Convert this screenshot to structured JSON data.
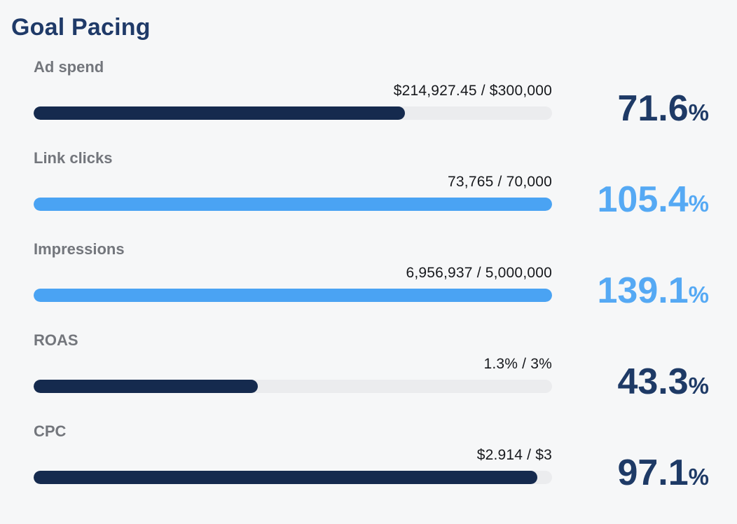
{
  "title": "Goal Pacing",
  "percent_suffix": "%",
  "colors": {
    "navy_bar": "#152a4e",
    "navy_text": "#1e3a66",
    "blue_bar": "#4aa3f3",
    "blue_text": "#55a9f4",
    "track": "#ebecee",
    "label_gray": "#73767c",
    "value_dark": "#17191d",
    "background": "#f6f7f8"
  },
  "chart_data": {
    "type": "bar",
    "title": "Goal Pacing",
    "orientation": "horizontal",
    "bar_scale": "0-100% of goal, capped at 100",
    "metrics": [
      {
        "label": "Ad spend",
        "value_text": "$214,927.45 / $300,000",
        "current": 214927.45,
        "goal": 300000,
        "percent": 71.6,
        "percent_display": "71.6",
        "theme": "navy"
      },
      {
        "label": "Link clicks",
        "value_text": "73,765 / 70,000",
        "current": 73765,
        "goal": 70000,
        "percent": 105.4,
        "percent_display": "105.4",
        "theme": "blue"
      },
      {
        "label": "Impressions",
        "value_text": "6,956,937 / 5,000,000",
        "current": 6956937,
        "goal": 5000000,
        "percent": 139.1,
        "percent_display": "139.1",
        "theme": "blue"
      },
      {
        "label": "ROAS",
        "value_text": "1.3% / 3%",
        "current": 1.3,
        "goal": 3,
        "percent": 43.3,
        "percent_display": "43.3",
        "theme": "navy"
      },
      {
        "label": "CPC",
        "value_text": "$2.914 / $3",
        "current": 2.914,
        "goal": 3,
        "percent": 97.1,
        "percent_display": "97.1",
        "theme": "navy"
      }
    ]
  }
}
